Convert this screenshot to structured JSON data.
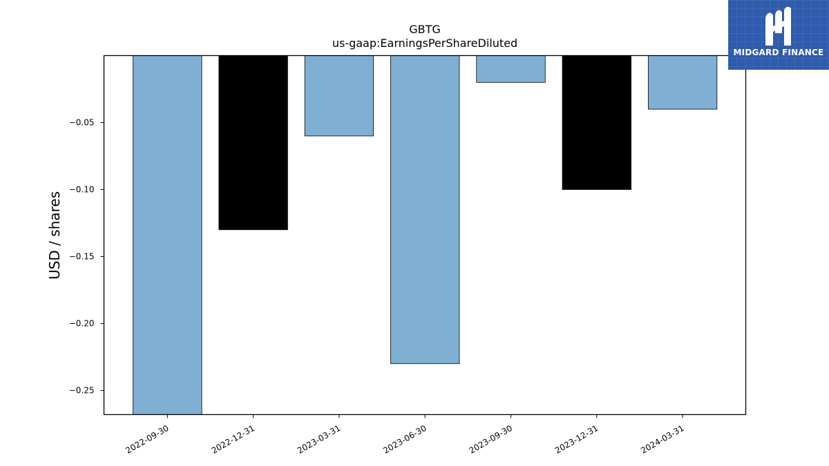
{
  "chart_data": {
    "type": "bar",
    "title": "GBTG",
    "subtitle": "us-gaap:EarningsPerShareDiluted",
    "ylabel": "USD / shares",
    "xlabel": "",
    "categories": [
      "2022-09-30",
      "2022-12-31",
      "2023-03-31",
      "2023-06-30",
      "2023-09-30",
      "2023-12-31",
      "2024-03-31"
    ],
    "values": [
      -0.27,
      -0.13,
      -0.06,
      -0.23,
      -0.02,
      -0.1,
      -0.04
    ],
    "bar_colors": [
      "#7fb0d3",
      "#000000",
      "#7fb0d3",
      "#7fb0d3",
      "#7fb0d3",
      "#000000",
      "#7fb0d3"
    ],
    "ylim": [
      -0.268,
      0.0
    ],
    "yticks": [
      -0.05,
      -0.1,
      -0.15,
      -0.2,
      -0.25
    ],
    "ytick_labels": [
      "−0.05",
      "−0.10",
      "−0.15",
      "−0.20",
      "−0.25"
    ],
    "grid": false,
    "legend": "none"
  },
  "logo": {
    "text": "MIDGARD FINANCE",
    "icon": "midgard-logo-icon",
    "background": "#2f5bad"
  }
}
